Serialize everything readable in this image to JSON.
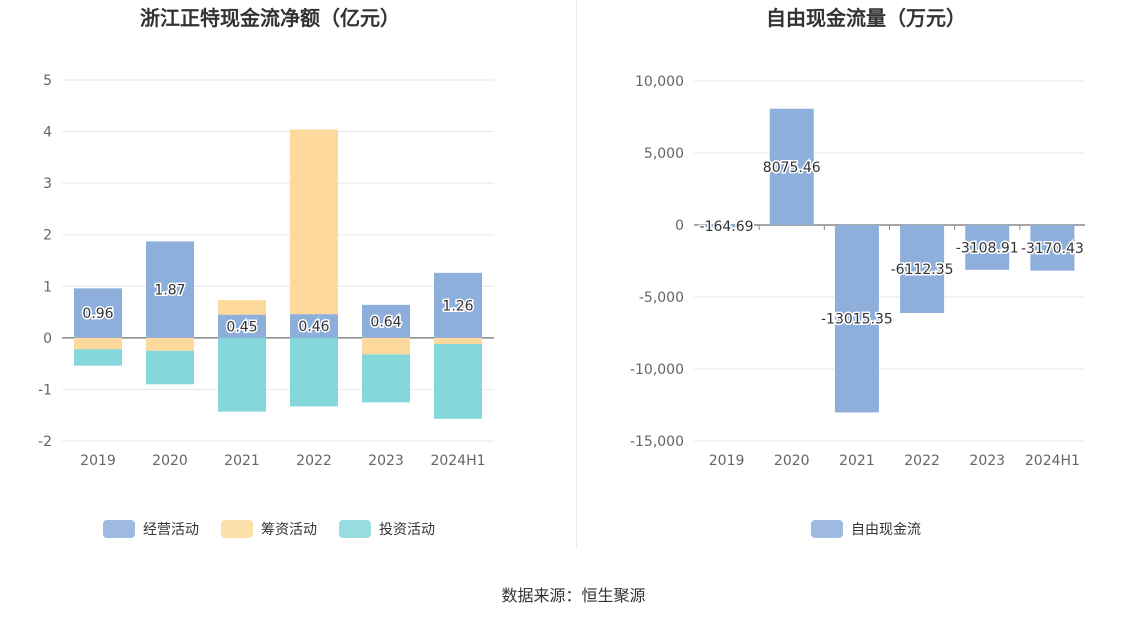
{
  "chart_data": [
    {
      "type": "bar",
      "stacked": true,
      "title": "浙江正特现金流净额（亿元）",
      "categories": [
        "2019",
        "2020",
        "2021",
        "2022",
        "2023",
        "2024H1"
      ],
      "series": [
        {
          "name": "经营活动",
          "color": "#8eaedc",
          "values": [
            0.96,
            1.87,
            0.45,
            0.46,
            0.64,
            1.26
          ]
        },
        {
          "name": "筹资活动",
          "color": "#fdd99b",
          "values": [
            -0.22,
            -0.25,
            0.28,
            3.58,
            -0.32,
            -0.12
          ]
        },
        {
          "name": "投资活动",
          "color": "#86d7d9",
          "values": [
            -0.32,
            -0.65,
            -1.43,
            -1.33,
            -0.93,
            -1.45
          ]
        }
      ],
      "data_labels_series": "经营活动",
      "data_labels": [
        "0.96",
        "1.87",
        "0.45",
        "0.46",
        "0.64",
        "1.26"
      ],
      "ylim": [
        -2,
        5
      ],
      "yticks": [
        "-2",
        "-1",
        "0",
        "1",
        "2",
        "3",
        "4",
        "5"
      ],
      "grid": true,
      "legend": "bottom-center"
    },
    {
      "type": "bar",
      "title": "自由现金流量（万元）",
      "categories": [
        "2019",
        "2020",
        "2021",
        "2022",
        "2023",
        "2024H1"
      ],
      "series": [
        {
          "name": "自由现金流",
          "color": "#8eaedc",
          "values": [
            -164.69,
            8075.46,
            -13015.35,
            -6112.35,
            -3108.91,
            -3170.43
          ]
        }
      ],
      "data_labels": [
        "-164.69",
        "8075.46",
        "-13015.35",
        "-6112.35",
        "-3108.91",
        "-3170.43"
      ],
      "ylim": [
        -15000,
        10000
      ],
      "yticks": [
        "-15,000",
        "-10,000",
        "-5,000",
        "0",
        "5,000",
        "10,000"
      ],
      "grid": true,
      "legend": "bottom-center"
    }
  ],
  "source_text": "数据来源：恒生聚源"
}
